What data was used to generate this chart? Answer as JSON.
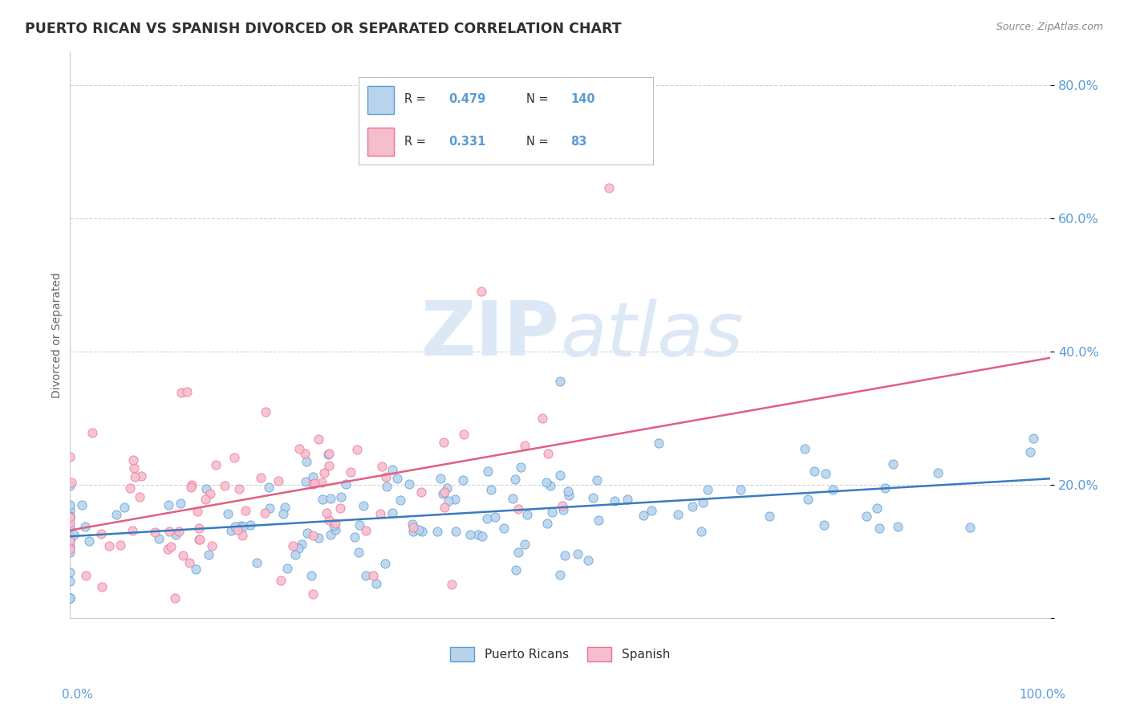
{
  "title": "PUERTO RICAN VS SPANISH DIVORCED OR SEPARATED CORRELATION CHART",
  "source": "Source: ZipAtlas.com",
  "ylabel": "Divorced or Separated",
  "legend_label_pr": "Puerto Ricans",
  "legend_label_sp": "Spanish",
  "blue_R": 0.479,
  "blue_N": 140,
  "pink_R": 0.331,
  "pink_N": 83,
  "xlim": [
    0.0,
    1.0
  ],
  "ylim": [
    0.0,
    0.85
  ],
  "yticks": [
    0.0,
    0.2,
    0.4,
    0.6,
    0.8
  ],
  "ytick_labels": [
    "",
    "20.0%",
    "40.0%",
    "60.0%",
    "80.0%"
  ],
  "blue_color": "#b8d4ed",
  "pink_color": "#f5bece",
  "blue_edge_color": "#5b9bd5",
  "pink_edge_color": "#f07090",
  "blue_line_color": "#3a7abf",
  "pink_line_color": "#e06080",
  "title_color": "#303030",
  "axis_label_color": "#5b9bd5",
  "watermark_color": "#dce8f5",
  "background_color": "#ffffff",
  "grid_color": "#c8c8c8",
  "legend_border_color": "#c0c0c0",
  "source_color": "#888888"
}
